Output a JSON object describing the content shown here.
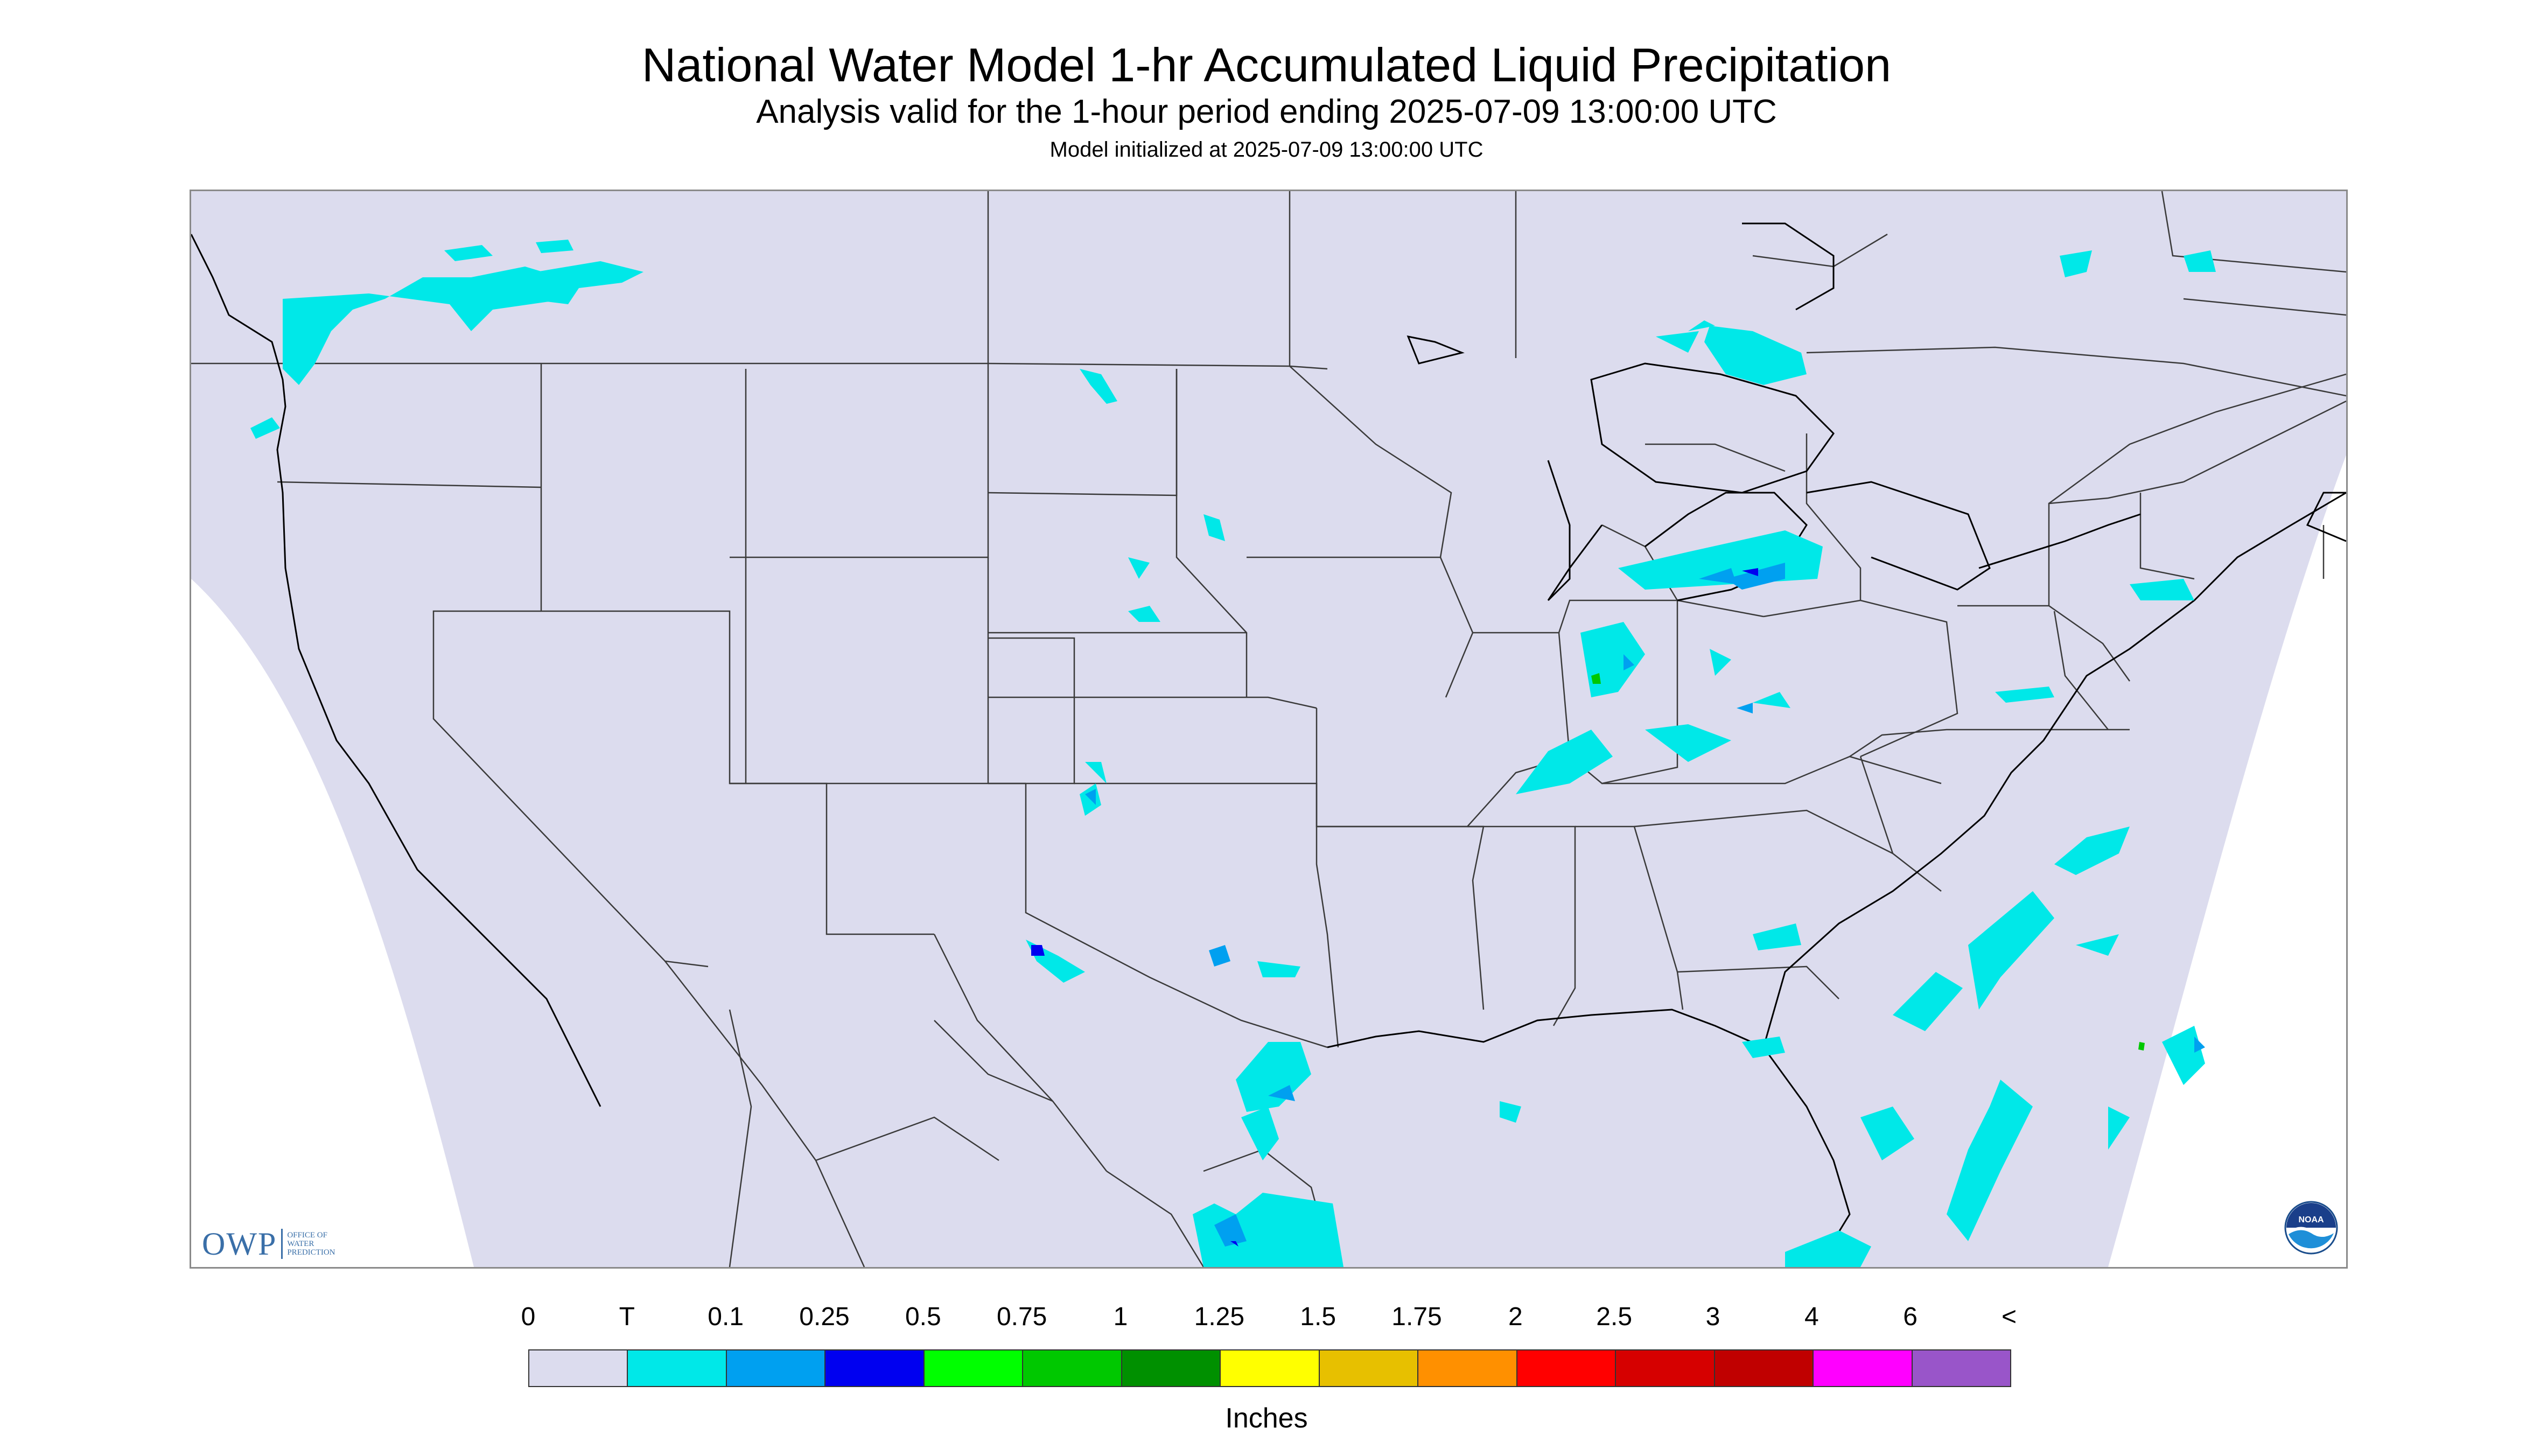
{
  "header": {
    "title": "National Water Model 1-hr Accumulated Liquid Precipitation",
    "subtitle": "Analysis valid for the 1-hour period ending 2025-07-09 13:00:00 UTC",
    "init": "Model initialized at 2025-07-09 13:00:00 UTC"
  },
  "logos": {
    "owp_word": "OWP",
    "owp_line1": "OFFICE OF",
    "owp_line2": "WATER",
    "owp_line3": "PREDICTION",
    "noaa": "NOAA"
  },
  "legend": {
    "ticks": [
      "0",
      "T",
      "0.1",
      "0.25",
      "0.5",
      "0.75",
      "1",
      "1.25",
      "1.5",
      "1.75",
      "2",
      "2.5",
      "3",
      "4",
      "6",
      "<"
    ],
    "colors": [
      "#dcdcee",
      "#00e8e8",
      "#00a0f0",
      "#0000f0",
      "#00ff00",
      "#00c800",
      "#009000",
      "#ffff00",
      "#e7c000",
      "#ff9000",
      "#ff0000",
      "#d60000",
      "#c00000",
      "#ff00ff",
      "#9955c9"
    ],
    "units": "Inches"
  },
  "map_style": {
    "domain_fill": "#dcdcee",
    "border_color": "#3a3a3a",
    "coast_color": "#000000"
  }
}
